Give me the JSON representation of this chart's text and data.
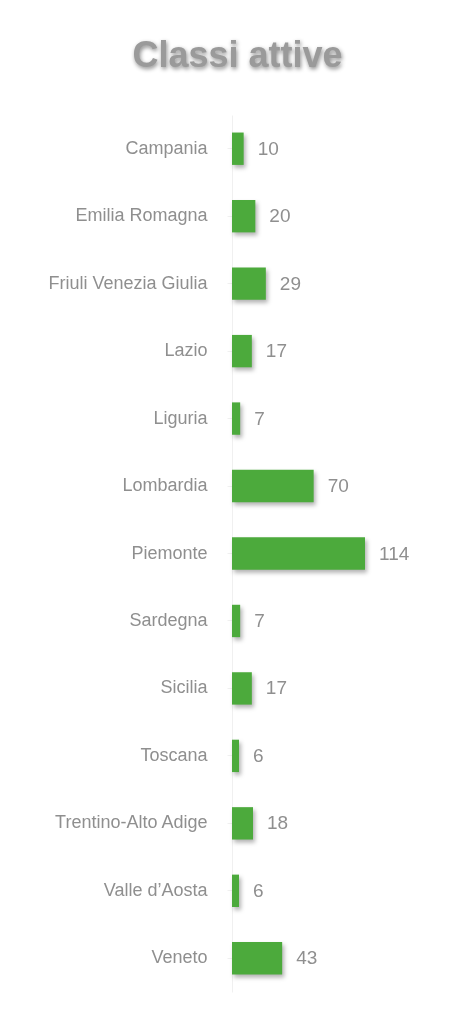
{
  "chart_data": {
    "type": "bar",
    "orientation": "horizontal",
    "title": "Classi attive",
    "categories": [
      "Campania",
      "Emilia Romagna",
      "Friuli Venezia Giulia",
      "Lazio",
      "Liguria",
      "Lombardia",
      "Piemonte",
      "Sardegna",
      "Sicilia",
      "Toscana",
      "Trentino-Alto Adige",
      "Valle d’Aosta",
      "Veneto"
    ],
    "values": [
      10,
      20,
      29,
      17,
      7,
      70,
      114,
      7,
      17,
      6,
      18,
      6,
      43
    ],
    "color": "#4caa3c",
    "data_labels": true
  }
}
